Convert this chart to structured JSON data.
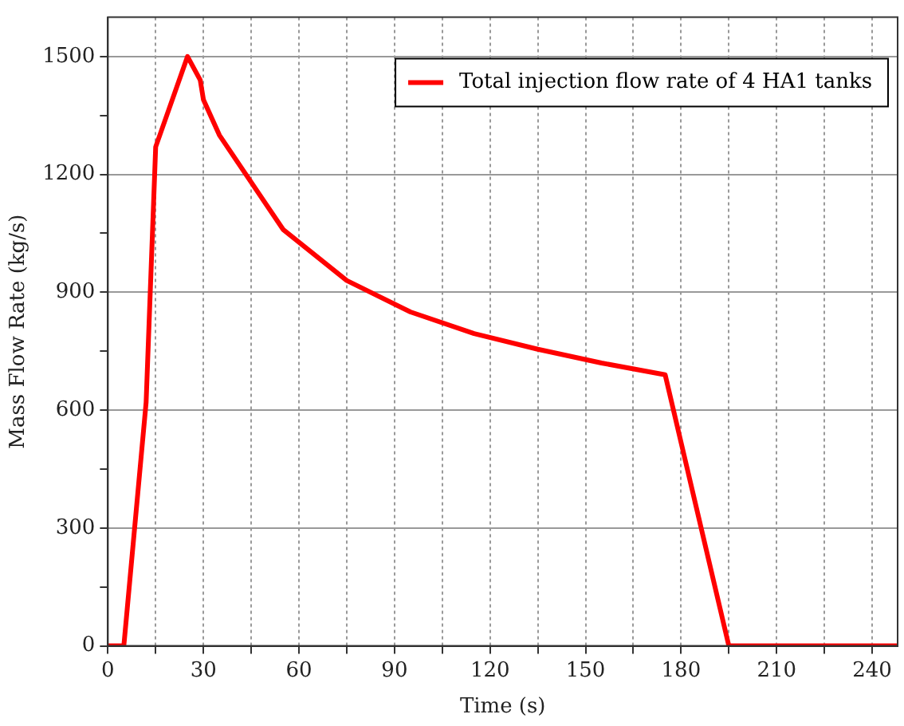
{
  "chart_data": {
    "type": "line",
    "xlabel": "Time (s)",
    "ylabel": "Mass Flow Rate (kg/s)",
    "x": [
      0,
      5,
      12,
      15,
      25,
      29,
      30,
      35,
      55,
      75,
      95,
      115,
      135,
      155,
      175,
      195,
      248
    ],
    "series": [
      {
        "name": "Total injection flow rate of 4 HA1 tanks",
        "color": "#ff0000",
        "values": [
          0,
          0,
          620,
          1270,
          1500,
          1440,
          1390,
          1300,
          1060,
          930,
          850,
          795,
          755,
          720,
          690,
          0,
          0
        ]
      }
    ],
    "xlim": [
      0,
      248
    ],
    "xticks": [
      0,
      {
        "value": 15,
        "label": null
      },
      30,
      {
        "value": 45,
        "label": null
      },
      60,
      {
        "value": 75,
        "label": null
      },
      90,
      {
        "value": 105,
        "label": null
      },
      120,
      {
        "value": 135,
        "label": null
      },
      150,
      {
        "value": 165,
        "label": null
      },
      180,
      {
        "value": 195,
        "label": null
      },
      210,
      {
        "value": 225,
        "label": null
      },
      240
    ],
    "ylim": [
      0,
      1600
    ],
    "yticks": [
      0,
      {
        "value": 150,
        "label": null
      },
      300,
      {
        "value": 450,
        "label": null
      },
      600,
      {
        "value": 750,
        "label": null
      },
      900,
      {
        "value": 1050,
        "label": null
      },
      1200,
      {
        "value": 1350,
        "label": null
      },
      1500
    ],
    "grid": true,
    "legend": "top right",
    "marker": "none",
    "line_style": "solid"
  }
}
